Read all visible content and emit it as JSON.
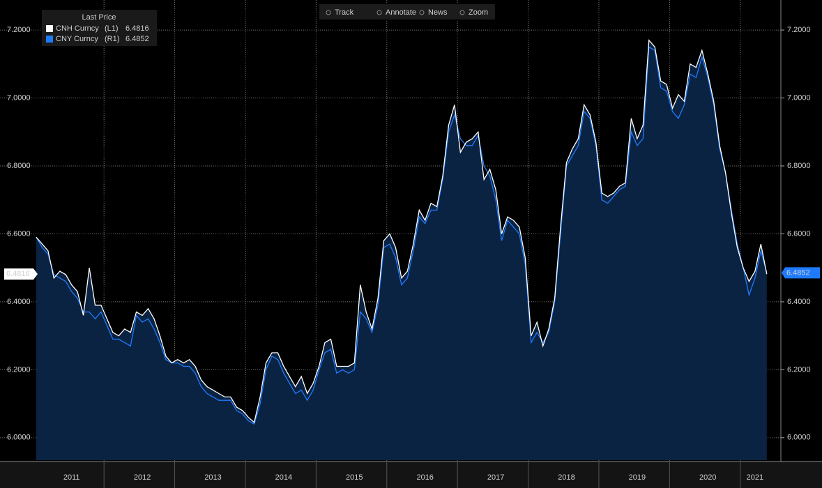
{
  "chart_data": {
    "type": "line",
    "toolbar": [
      "Track",
      "Annotate",
      "News",
      "Zoom"
    ],
    "legend_title": "Last Price",
    "categories": [
      null,
      null,
      null,
      null,
      null,
      null,
      "2011",
      null,
      null,
      null,
      null,
      null,
      null,
      null,
      null,
      null,
      null,
      null,
      "2012",
      null,
      null,
      null,
      null,
      null,
      null,
      null,
      null,
      null,
      null,
      null,
      "2013",
      null,
      null,
      null,
      null,
      null,
      null,
      null,
      null,
      null,
      null,
      null,
      "2014",
      null,
      null,
      null,
      null,
      null,
      null,
      null,
      null,
      null,
      null,
      null,
      "2015",
      null,
      null,
      null,
      null,
      null,
      null,
      null,
      null,
      null,
      null,
      null,
      "2016",
      null,
      null,
      null,
      null,
      null,
      null,
      null,
      null,
      null,
      null,
      null,
      "2017",
      null,
      null,
      null,
      null,
      null,
      null,
      null,
      null,
      null,
      null,
      null,
      "2018",
      null,
      null,
      null,
      null,
      null,
      null,
      null,
      null,
      null,
      null,
      null,
      "2019",
      null,
      null,
      null,
      null,
      null,
      null,
      null,
      null,
      null,
      null,
      null,
      "2020",
      null,
      null,
      null,
      null,
      null,
      null,
      null,
      "2021",
      null,
      null
    ],
    "series": [
      {
        "name": "CNH Curncy",
        "axis_tag": "(L1)",
        "last_label": "6.4816",
        "color": "#ffffff",
        "axis": "y",
        "values": [
          6.59,
          6.57,
          6.55,
          6.47,
          6.49,
          6.48,
          6.45,
          6.43,
          6.36,
          6.5,
          6.39,
          6.39,
          6.35,
          6.31,
          6.3,
          6.32,
          6.31,
          6.37,
          6.36,
          6.38,
          6.35,
          6.3,
          6.24,
          6.22,
          6.23,
          6.22,
          6.23,
          6.21,
          6.17,
          6.15,
          6.14,
          6.13,
          6.12,
          6.12,
          6.09,
          6.08,
          6.06,
          6.045,
          6.12,
          6.22,
          6.25,
          6.25,
          6.21,
          6.18,
          6.15,
          6.18,
          6.13,
          6.16,
          6.21,
          6.28,
          6.29,
          6.21,
          6.21,
          6.21,
          6.22,
          6.45,
          6.37,
          6.32,
          6.41,
          6.58,
          6.6,
          6.56,
          6.47,
          6.49,
          6.57,
          6.67,
          6.64,
          6.69,
          6.68,
          6.77,
          6.92,
          6.98,
          6.84,
          6.87,
          6.88,
          6.9,
          6.76,
          6.79,
          6.73,
          6.6,
          6.65,
          6.64,
          6.62,
          6.53,
          6.3,
          6.34,
          6.27,
          6.32,
          6.41,
          6.62,
          6.81,
          6.85,
          6.88,
          6.98,
          6.95,
          6.87,
          6.72,
          6.71,
          6.72,
          6.74,
          6.75,
          6.94,
          6.88,
          6.92,
          7.17,
          7.15,
          7.05,
          7.04,
          6.97,
          7.01,
          6.99,
          7.1,
          7.09,
          7.14,
          7.07,
          6.99,
          6.86,
          6.78,
          6.66,
          6.56,
          6.5,
          6.46,
          6.49,
          6.57,
          6.4816
        ]
      },
      {
        "name": "CNY Curncy",
        "axis_tag": "(R1)",
        "last_label": "6.4852",
        "color": "#1e7bff",
        "axis": "y2",
        "values": [
          6.59,
          6.56,
          6.54,
          6.48,
          6.47,
          6.46,
          6.43,
          6.41,
          6.37,
          6.37,
          6.35,
          6.37,
          6.33,
          6.29,
          6.29,
          6.28,
          6.27,
          6.36,
          6.34,
          6.35,
          6.32,
          6.28,
          6.23,
          6.22,
          6.22,
          6.21,
          6.21,
          6.19,
          6.15,
          6.13,
          6.12,
          6.11,
          6.11,
          6.11,
          6.08,
          6.07,
          6.05,
          6.04,
          6.1,
          6.2,
          6.24,
          6.23,
          6.19,
          6.16,
          6.13,
          6.14,
          6.11,
          6.14,
          6.2,
          6.25,
          6.26,
          6.19,
          6.2,
          6.19,
          6.2,
          6.37,
          6.35,
          6.31,
          6.39,
          6.56,
          6.57,
          6.53,
          6.45,
          6.47,
          6.55,
          6.65,
          6.63,
          6.67,
          6.67,
          6.76,
          6.9,
          6.95,
          6.88,
          6.86,
          6.86,
          6.89,
          6.8,
          6.77,
          6.7,
          6.58,
          6.64,
          6.62,
          6.6,
          6.51,
          6.28,
          6.31,
          6.28,
          6.31,
          6.4,
          6.6,
          6.8,
          6.83,
          6.86,
          6.96,
          6.94,
          6.86,
          6.7,
          6.69,
          6.71,
          6.73,
          6.74,
          6.9,
          6.86,
          6.88,
          7.15,
          7.14,
          7.03,
          7.02,
          6.96,
          6.94,
          6.98,
          7.07,
          7.06,
          7.12,
          7.06,
          6.98,
          6.85,
          6.78,
          6.67,
          6.57,
          6.5,
          6.42,
          6.47,
          6.55,
          6.4852
        ]
      }
    ],
    "area_color": "#0b2342",
    "ylim": [
      5.934,
      7.272
    ],
    "yticks": [
      {
        "value": 6.0,
        "label": "6.0000"
      },
      {
        "value": 6.2,
        "label": "6.2000"
      },
      {
        "value": 6.4,
        "label": "6.4000"
      },
      {
        "value": 6.6,
        "label": "6.6000"
      },
      {
        "value": 6.8,
        "label": "6.8000"
      },
      {
        "value": 7.0,
        "label": "7.0000"
      },
      {
        "value": 7.2,
        "label": "7.2000"
      }
    ],
    "y2lim": [
      5.934,
      7.272
    ],
    "y2ticks": [
      {
        "value": 6.0,
        "label": "6.0000"
      },
      {
        "value": 6.2,
        "label": "6.2000"
      },
      {
        "value": 6.4,
        "label": "6.4000"
      },
      {
        "value": 6.6,
        "label": "6.6000"
      },
      {
        "value": 6.8,
        "label": "6.8000"
      },
      {
        "value": 7.0,
        "label": "7.0000"
      },
      {
        "value": 7.2,
        "label": "7.2000"
      }
    ],
    "grid": true
  }
}
